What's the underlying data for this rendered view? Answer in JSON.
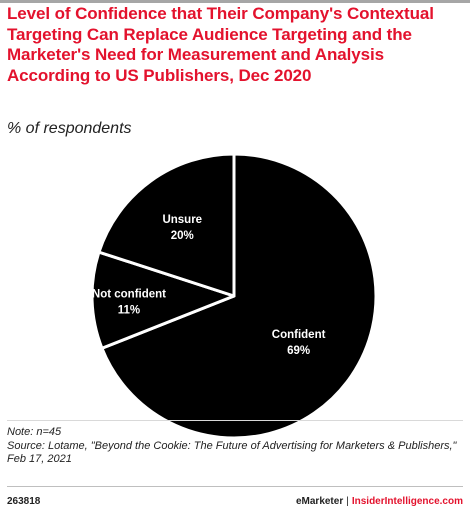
{
  "title": "Level of Confidence that Their Company's Contextual Targeting Can Replace Audience Targeting and the Marketer's Need for Measurement and Analysis According to US Publishers, Dec 2020",
  "subtitle": "% of respondents",
  "colors": {
    "title": "#e3122d",
    "slice_fill": "#000000",
    "slice_border": "#ffffff",
    "brand_accent": "#e3122d"
  },
  "chart_data": {
    "type": "pie",
    "title": "Level of Confidence that Their Company's Contextual Targeting Can Replace Audience Targeting and the Marketer's Need for Measurement and Analysis According to US Publishers, Dec 2020",
    "subtitle": "% of respondents",
    "unit": "%",
    "slices": [
      {
        "label": "Confident",
        "value": 69,
        "value_label": "69%"
      },
      {
        "label": "Not confident",
        "value": 11,
        "value_label": "11%"
      },
      {
        "label": "Unsure",
        "value": 20,
        "value_label": "20%"
      }
    ],
    "start": "12 o'clock",
    "direction": "clockwise"
  },
  "footer": {
    "note": "Note: n=45",
    "source": "Source: Lotame, \"Beyond the Cookie: The Future of Advertising for Marketers & Publishers,\"",
    "date": "Feb 17, 2021",
    "chart_id": "263818",
    "brand": "eMarketer",
    "separator": "|",
    "site": "InsiderIntelligence.com"
  }
}
